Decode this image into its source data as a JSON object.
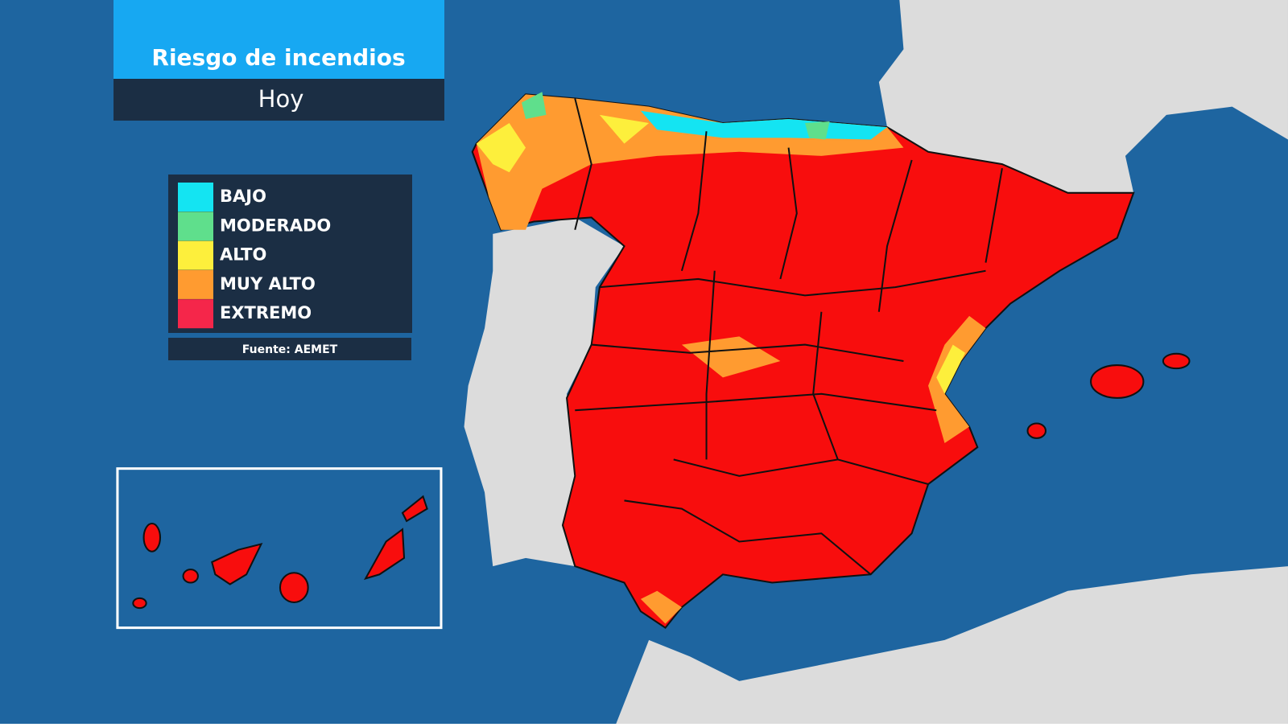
{
  "header": {
    "title": "Riesgo de incendios",
    "subtitle": "Hoy"
  },
  "legend": {
    "items": [
      {
        "label": "BAJO",
        "color": "#14e4f2"
      },
      {
        "label": "MODERADO",
        "color": "#5fdf8c"
      },
      {
        "label": "ALTO",
        "color": "#fdef3c"
      },
      {
        "label": "MUY ALTO",
        "color": "#ff9b30"
      },
      {
        "label": "EXTREMO",
        "color": "#f5264a"
      }
    ]
  },
  "source": "Fuente: AEMET"
}
